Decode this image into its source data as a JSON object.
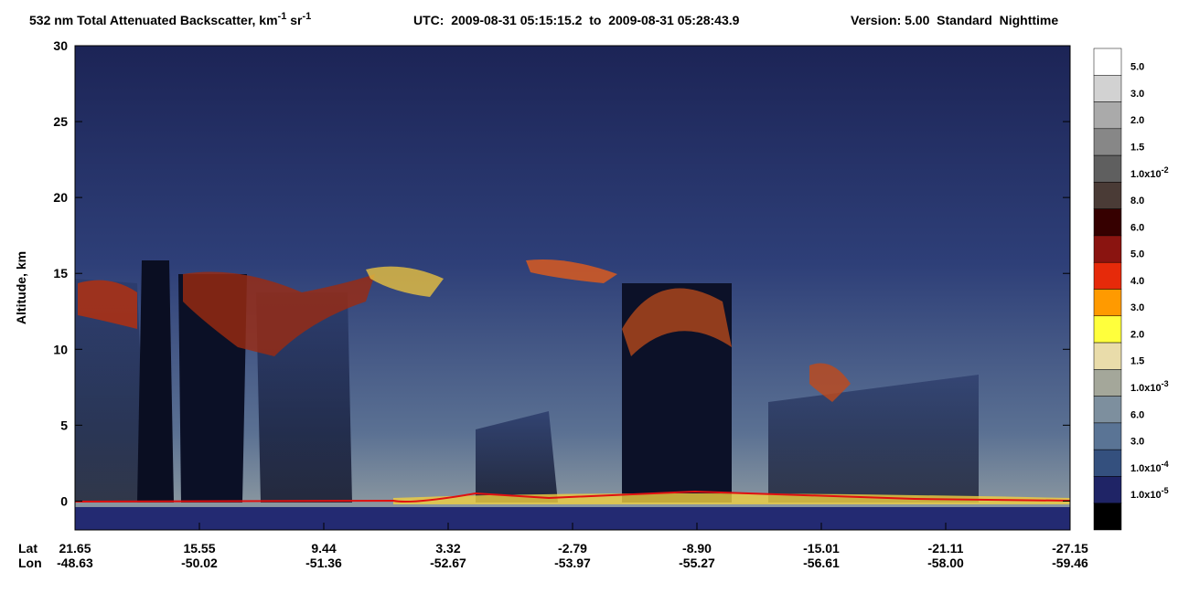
{
  "chart_data": {
    "type": "curtain",
    "title_segments": [
      {
        "text": "532 nm Total Attenuated Backscatter, km"
      },
      {
        "text": "-1",
        "sup": true
      },
      {
        "text": " sr"
      },
      {
        "text": "-1",
        "sup": true
      }
    ],
    "utc": "UTC:  2009-08-31 05:15:15.2  to  2009-08-31 05:28:43.9",
    "version": "Version: 5.00  Standard  Nighttime",
    "y_label": "Altitude, km",
    "ylim": [
      -1.9,
      30
    ],
    "yticks": [
      0,
      5,
      10,
      15,
      20,
      25,
      30
    ],
    "x_rows": [
      {
        "name": "Lat",
        "labels": [
          "21.65",
          "15.55",
          "9.44",
          "3.32",
          "-2.79",
          "-8.90",
          "-15.01",
          "-21.11",
          "-27.15"
        ]
      },
      {
        "name": "Lon",
        "labels": [
          "-48.63",
          "-50.02",
          "-51.36",
          "-52.67",
          "-53.97",
          "-55.27",
          "-56.61",
          "-58.00",
          "-59.46"
        ]
      }
    ],
    "colorbar": {
      "colors": [
        "#ffffff",
        "#d2d2d2",
        "#aaaaaa",
        "#878787",
        "#5f5f5f",
        "#4a3b36",
        "#360000",
        "#8a1410",
        "#e62a0a",
        "#ff9a00",
        "#ffff3c",
        "#e9dcaa",
        "#a4a79a",
        "#7d8f9e",
        "#5a7495",
        "#34507e",
        "#1f2466",
        "#000000"
      ],
      "labels": [
        "5.0",
        "3.0",
        "2.0",
        "1.5",
        {
          "text": "1.0x10",
          "sup": "-2"
        },
        "8.0",
        "6.0",
        "5.0",
        "4.0",
        "3.0",
        "2.0",
        "1.5",
        {
          "text": "1.0x10",
          "sup": "-3"
        },
        "6.0",
        "3.0",
        {
          "text": "1.0x10",
          "sup": "-4"
        },
        {
          "text": "1.0x10",
          "sup": "-5"
        }
      ]
    }
  }
}
